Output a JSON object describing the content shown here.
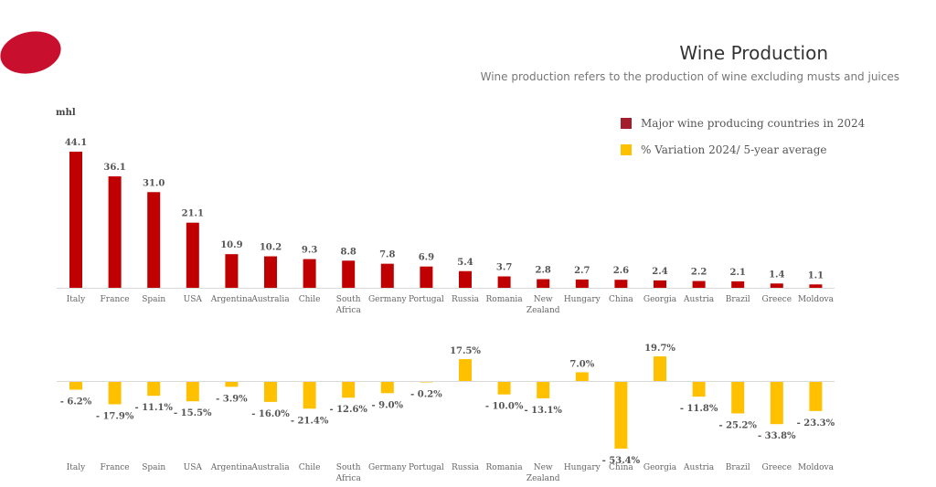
{
  "header": {
    "title": "Wine Production",
    "subtitle": "Wine production refers to the production of wine excluding musts and juices"
  },
  "colors": {
    "logo": "#c8102e",
    "production": "#c00000",
    "production_legend": "#a31d2c",
    "variation": "#ffc000",
    "axis": "#d9d9d9"
  },
  "legend": {
    "items": [
      {
        "label": "Major wine producing countries in 2024",
        "color": "#a31d2c"
      },
      {
        "label": "% Variation 2024/ 5-year average",
        "color": "#ffc000"
      }
    ]
  },
  "chart_data": [
    {
      "type": "bar",
      "title": "Major wine producing countries in 2024",
      "ylabel": "mhl",
      "xlabel": "",
      "categories": [
        "Italy",
        "France",
        "Spain",
        "USA",
        "Argentina",
        "Australia",
        "Chile",
        "South Africa",
        "Germany",
        "Portugal",
        "Russia",
        "Romania",
        "New Zealand",
        "Hungary",
        "China",
        "Georgia",
        "Austria",
        "Brazil",
        "Greece",
        "Moldova"
      ],
      "values": [
        44.1,
        36.1,
        31.0,
        21.1,
        10.9,
        10.2,
        9.3,
        8.8,
        7.8,
        6.9,
        5.4,
        3.7,
        2.8,
        2.7,
        2.6,
        2.4,
        2.2,
        2.1,
        1.4,
        1.1
      ],
      "labels": [
        "44.1",
        "36.1",
        "31.0",
        "21.1",
        "10.9",
        "10.2",
        "9.3",
        "8.8",
        "7.8",
        "6.9",
        "5.4",
        "3.7",
        "2.8",
        "2.7",
        "2.6",
        "2.4",
        "2.2",
        "2.1",
        "1.4",
        "1.1"
      ],
      "ylim": [
        0,
        45
      ],
      "grid": false,
      "legend": "top-right"
    },
    {
      "type": "bar",
      "title": "% Variation 2024/ 5-year average",
      "ylabel": "",
      "xlabel": "",
      "categories": [
        "Italy",
        "France",
        "Spain",
        "USA",
        "Argentina",
        "Australia",
        "Chile",
        "South Africa",
        "Germany",
        "Portugal",
        "Russia",
        "Romania",
        "New Zealand",
        "Hungary",
        "China",
        "Georgia",
        "Austria",
        "Brazil",
        "Greece",
        "Moldova"
      ],
      "values": [
        -6.2,
        -17.9,
        -11.1,
        -15.5,
        -3.9,
        -16.0,
        -21.4,
        -12.6,
        -9.0,
        -0.2,
        17.5,
        -10.0,
        -13.1,
        7.0,
        -53.4,
        19.7,
        -11.8,
        -25.2,
        -33.8,
        -23.3
      ],
      "labels": [
        "- 6.2%",
        "- 17.9%",
        "- 11.1%",
        "- 15.5%",
        "- 3.9%",
        "- 16.0%",
        "- 21.4%",
        "- 12.6%",
        "- 9.0%",
        "- 0.2%",
        "17.5%",
        "- 10.0%",
        "- 13.1%",
        "7.0%",
        "- 53.4%",
        "19.7%",
        "- 11.8%",
        "- 25.2%",
        "- 33.8%",
        "- 23.3%"
      ],
      "unit": "%",
      "ylim": [
        -55,
        20
      ],
      "grid": false
    }
  ]
}
